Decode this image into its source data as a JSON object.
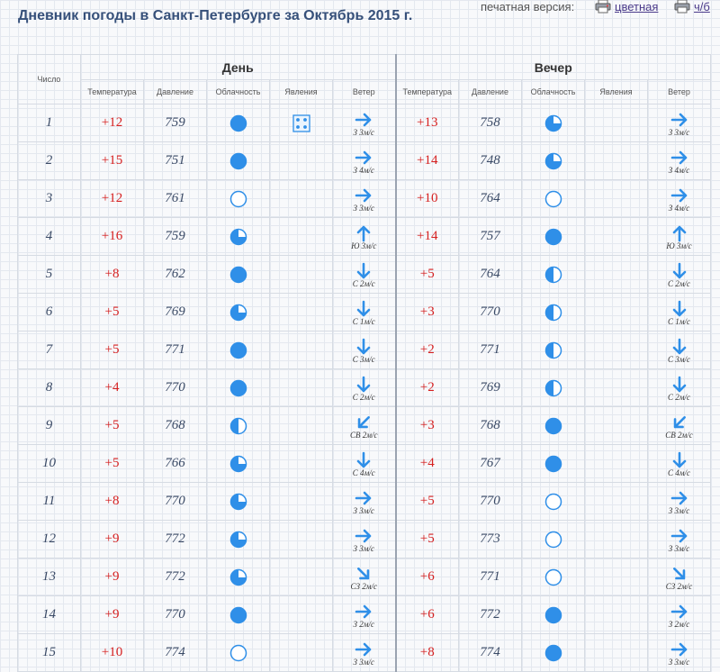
{
  "header": {
    "title": "Дневник погоды в Санкт-Петербурге за Октябрь 2015 г.",
    "print_label": "печатная версия:",
    "print_color_label": "цветная",
    "print_bw_label": "ч/б"
  },
  "table": {
    "day_header": "Число",
    "group_day": "День",
    "group_evening": "Вечер",
    "columns": [
      "Температура",
      "Давление",
      "Облачность",
      "Явления",
      "Ветер"
    ],
    "rows": [
      {
        "day": "1",
        "d_temp": "+12",
        "d_press": "759",
        "d_cloud": "overcast",
        "d_phen": "snow-icon",
        "d_wdir": "e",
        "d_wind": "З 3м/с",
        "e_temp": "+13",
        "e_press": "758",
        "e_cloud": "partly",
        "e_wdir": "e",
        "e_wind": "З 3м/с"
      },
      {
        "day": "2",
        "d_temp": "+15",
        "d_press": "751",
        "d_cloud": "overcast",
        "d_phen": "",
        "d_wdir": "e",
        "d_wind": "З 4м/с",
        "e_temp": "+14",
        "e_press": "748",
        "e_cloud": "partly",
        "e_wdir": "e",
        "e_wind": "З 4м/с"
      },
      {
        "day": "3",
        "d_temp": "+12",
        "d_press": "761",
        "d_cloud": "clear",
        "d_phen": "",
        "d_wdir": "e",
        "d_wind": "З 3м/с",
        "e_temp": "+10",
        "e_press": "764",
        "e_cloud": "clear",
        "e_wdir": "e",
        "e_wind": "З 4м/с"
      },
      {
        "day": "4",
        "d_temp": "+16",
        "d_press": "759",
        "d_cloud": "partly",
        "d_phen": "",
        "d_wdir": "n",
        "d_wind": "Ю 3м/с",
        "e_temp": "+14",
        "e_press": "757",
        "e_cloud": "overcast",
        "e_wdir": "n",
        "e_wind": "Ю 3м/с"
      },
      {
        "day": "5",
        "d_temp": "+8",
        "d_press": "762",
        "d_cloud": "overcast",
        "d_phen": "",
        "d_wdir": "s",
        "d_wind": "С 2м/с",
        "e_temp": "+5",
        "e_press": "764",
        "e_cloud": "cloudy",
        "e_wdir": "s",
        "e_wind": "С 2м/с"
      },
      {
        "day": "6",
        "d_temp": "+5",
        "d_press": "769",
        "d_cloud": "partly",
        "d_phen": "",
        "d_wdir": "s",
        "d_wind": "С 1м/с",
        "e_temp": "+3",
        "e_press": "770",
        "e_cloud": "cloudy",
        "e_wdir": "s",
        "e_wind": "С 1м/с"
      },
      {
        "day": "7",
        "d_temp": "+5",
        "d_press": "771",
        "d_cloud": "overcast",
        "d_phen": "",
        "d_wdir": "s",
        "d_wind": "С 3м/с",
        "e_temp": "+2",
        "e_press": "771",
        "e_cloud": "cloudy",
        "e_wdir": "s",
        "e_wind": "С 3м/с"
      },
      {
        "day": "8",
        "d_temp": "+4",
        "d_press": "770",
        "d_cloud": "overcast",
        "d_phen": "",
        "d_wdir": "s",
        "d_wind": "С 2м/с",
        "e_temp": "+2",
        "e_press": "769",
        "e_cloud": "cloudy",
        "e_wdir": "s",
        "e_wind": "С 2м/с"
      },
      {
        "day": "9",
        "d_temp": "+5",
        "d_press": "768",
        "d_cloud": "cloudy",
        "d_phen": "",
        "d_wdir": "sw",
        "d_wind": "СВ 2м/с",
        "e_temp": "+3",
        "e_press": "768",
        "e_cloud": "overcast",
        "e_wdir": "sw",
        "e_wind": "СВ 2м/с"
      },
      {
        "day": "10",
        "d_temp": "+5",
        "d_press": "766",
        "d_cloud": "partly",
        "d_phen": "",
        "d_wdir": "s",
        "d_wind": "С 4м/с",
        "e_temp": "+4",
        "e_press": "767",
        "e_cloud": "overcast",
        "e_wdir": "s",
        "e_wind": "С 4м/с"
      },
      {
        "day": "11",
        "d_temp": "+8",
        "d_press": "770",
        "d_cloud": "partly",
        "d_phen": "",
        "d_wdir": "e",
        "d_wind": "З 3м/с",
        "e_temp": "+5",
        "e_press": "770",
        "e_cloud": "clear",
        "e_wdir": "e",
        "e_wind": "З 3м/с"
      },
      {
        "day": "12",
        "d_temp": "+9",
        "d_press": "772",
        "d_cloud": "partly",
        "d_phen": "",
        "d_wdir": "e",
        "d_wind": "З 3м/с",
        "e_temp": "+5",
        "e_press": "773",
        "e_cloud": "clear",
        "e_wdir": "e",
        "e_wind": "З 3м/с"
      },
      {
        "day": "13",
        "d_temp": "+9",
        "d_press": "772",
        "d_cloud": "partly",
        "d_phen": "",
        "d_wdir": "se",
        "d_wind": "СЗ 2м/с",
        "e_temp": "+6",
        "e_press": "771",
        "e_cloud": "clear",
        "e_wdir": "se",
        "e_wind": "СЗ 2м/с"
      },
      {
        "day": "14",
        "d_temp": "+9",
        "d_press": "770",
        "d_cloud": "overcast",
        "d_phen": "",
        "d_wdir": "e",
        "d_wind": "З 2м/с",
        "e_temp": "+6",
        "e_press": "772",
        "e_cloud": "overcast",
        "e_wdir": "e",
        "e_wind": "З 2м/с"
      },
      {
        "day": "15",
        "d_temp": "+10",
        "d_press": "774",
        "d_cloud": "clear",
        "d_phen": "",
        "d_wdir": "e",
        "d_wind": "З 3м/с",
        "e_temp": "+8",
        "e_press": "774",
        "e_cloud": "overcast",
        "e_wdir": "e",
        "e_wind": "З 3м/с"
      }
    ]
  },
  "colors": {
    "accent": "#2f8fe8",
    "temperature": "#d62020",
    "title": "#36507a"
  }
}
